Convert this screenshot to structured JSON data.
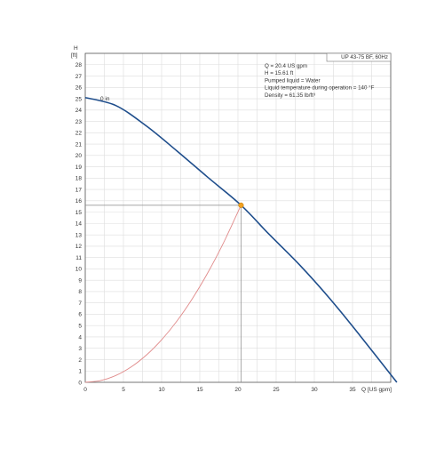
{
  "chart_data": {
    "type": "line",
    "model_label": "UP 43-75 BF, 60Hz",
    "xlabel": "Q [US gpm]",
    "ylabel_line1": "H",
    "ylabel_line2": "[ft]",
    "xlim": [
      0,
      40
    ],
    "ylim": [
      0,
      29
    ],
    "x_ticks": [
      0,
      5,
      10,
      15,
      20,
      25,
      30,
      35
    ],
    "y_ticks": [
      0,
      1,
      2,
      3,
      4,
      5,
      6,
      7,
      8,
      9,
      10,
      11,
      12,
      13,
      14,
      15,
      16,
      17,
      18,
      19,
      20,
      21,
      22,
      23,
      24,
      25,
      26,
      27,
      28
    ],
    "grid": true,
    "info_lines": [
      "Q = 20.4 US gpm",
      "H = 15.61 ft",
      "Pumped liquid = Water",
      "Liquid temperature during operation = 140 °F",
      "Density = 61.35 lb/ft³"
    ],
    "series": [
      {
        "name": "0 in",
        "color": "#1f4e8c",
        "x": [
          0,
          4,
          8,
          12,
          16,
          20.4,
          24,
          28,
          32,
          36,
          40.8
        ],
        "y": [
          25.1,
          24.4,
          22.6,
          20.4,
          18.1,
          15.61,
          13.1,
          10.4,
          7.4,
          4.1,
          0
        ]
      },
      {
        "name": "",
        "color": "#e08a8a",
        "x": [
          0,
          2,
          4,
          6,
          8,
          10,
          12,
          14,
          16,
          18,
          20.4
        ],
        "y": [
          0,
          0.15,
          0.6,
          1.35,
          2.4,
          3.75,
          5.4,
          7.35,
          9.6,
          12.15,
          15.61
        ]
      }
    ],
    "duty_point": {
      "x": 20.4,
      "y": 15.61,
      "color": "#f0a020"
    }
  }
}
